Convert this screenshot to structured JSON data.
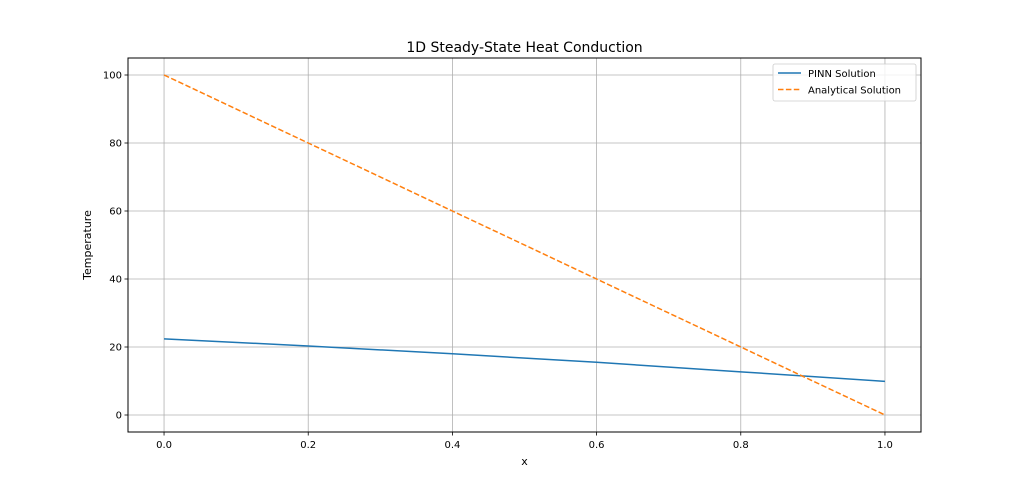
{
  "chart_data": {
    "type": "line",
    "title": "1D Steady-State Heat Conduction",
    "xlabel": "x",
    "ylabel": "Temperature",
    "xlim": [
      -0.05,
      1.05
    ],
    "ylim": [
      -5,
      105
    ],
    "xticks": [
      0.0,
      0.2,
      0.4,
      0.6,
      0.8,
      1.0
    ],
    "xtick_labels": [
      "0.0",
      "0.2",
      "0.4",
      "0.6",
      "0.8",
      "1.0"
    ],
    "yticks": [
      0,
      20,
      40,
      60,
      80,
      100
    ],
    "ytick_labels": [
      "0",
      "20",
      "40",
      "60",
      "80",
      "100"
    ],
    "grid": true,
    "legend_position": "top-right",
    "x": [
      0.0,
      0.2,
      0.4,
      0.6,
      0.8,
      1.0
    ],
    "series": [
      {
        "name": "PINN Solution",
        "color": "#1f77b4",
        "style": "solid",
        "values": [
          22.4,
          20.3,
          18.0,
          15.5,
          12.7,
          9.9
        ]
      },
      {
        "name": "Analytical Solution",
        "color": "#ff7f0e",
        "style": "dashed",
        "values": [
          100,
          80,
          60,
          40,
          20,
          0
        ]
      }
    ]
  }
}
